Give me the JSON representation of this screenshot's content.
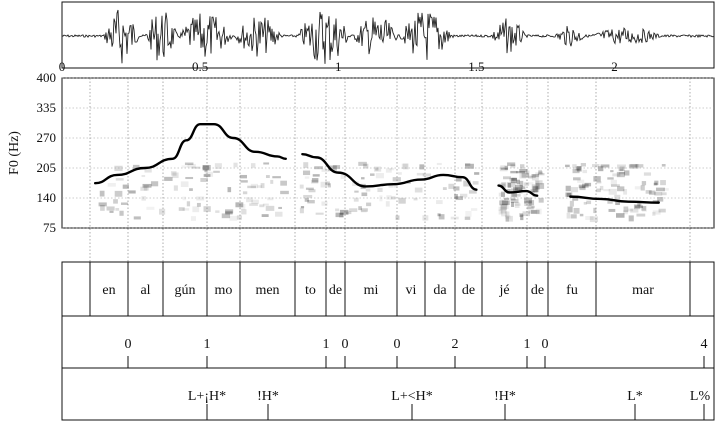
{
  "waveform": {
    "label": ""
  },
  "time_axis": {
    "ticks": [
      "0",
      "0.5",
      "1",
      "1.5",
      "2"
    ],
    "tick_values": [
      0,
      0.5,
      1,
      1.5,
      2
    ],
    "range_s": [
      0,
      2.36
    ]
  },
  "f0_axis": {
    "title": "F0 (Hz)",
    "ticks": [
      "400",
      "335",
      "270",
      "205",
      "140",
      "75"
    ],
    "tick_values": [
      400,
      335,
      270,
      205,
      140,
      75
    ],
    "range_hz": [
      75,
      400
    ]
  },
  "chart_data": {
    "type": "line",
    "title": "",
    "xlabel": "",
    "ylabel": "F0 (Hz)",
    "xlim": [
      0,
      2.36
    ],
    "ylim": [
      75,
      400
    ],
    "grid": true,
    "series": [
      {
        "points": [
          [
            0.12,
            172
          ],
          [
            0.2,
            190
          ],
          [
            0.3,
            205
          ],
          [
            0.4,
            225
          ],
          [
            0.45,
            265
          ],
          [
            0.5,
            300
          ],
          [
            0.55,
            300
          ],
          [
            0.62,
            270
          ],
          [
            0.7,
            240
          ],
          [
            0.78,
            230
          ],
          [
            0.81,
            225
          ]
        ]
      },
      {
        "points": [
          [
            0.87,
            235
          ],
          [
            0.92,
            228
          ],
          [
            1.0,
            195
          ],
          [
            1.1,
            165
          ],
          [
            1.2,
            170
          ],
          [
            1.3,
            180
          ],
          [
            1.38,
            190
          ],
          [
            1.45,
            185
          ],
          [
            1.5,
            158
          ]
        ]
      },
      {
        "points": [
          [
            1.58,
            167
          ],
          [
            1.62,
            152
          ],
          [
            1.68,
            155
          ],
          [
            1.72,
            145
          ]
        ]
      },
      {
        "points": [
          [
            1.84,
            143
          ],
          [
            1.95,
            138
          ],
          [
            2.05,
            132
          ],
          [
            2.16,
            130
          ]
        ]
      }
    ]
  },
  "tiers": {
    "syllables": [
      "en",
      "al",
      "gún",
      "mo",
      "men",
      "to",
      "de",
      "mi",
      "vi",
      "da",
      "de",
      "jé",
      "de",
      "fu",
      "mar"
    ],
    "break_indices": [
      "0",
      "1",
      "1",
      "0",
      "0",
      "2",
      "1",
      "0",
      "4"
    ],
    "tones": [
      "L+¡H*",
      "!H*",
      "L+<H*",
      "!H*",
      "L*",
      "L%"
    ]
  },
  "colors": {
    "ink": "#111111",
    "grid": "#9a9a9a",
    "panel_bg": "#ffffff"
  }
}
